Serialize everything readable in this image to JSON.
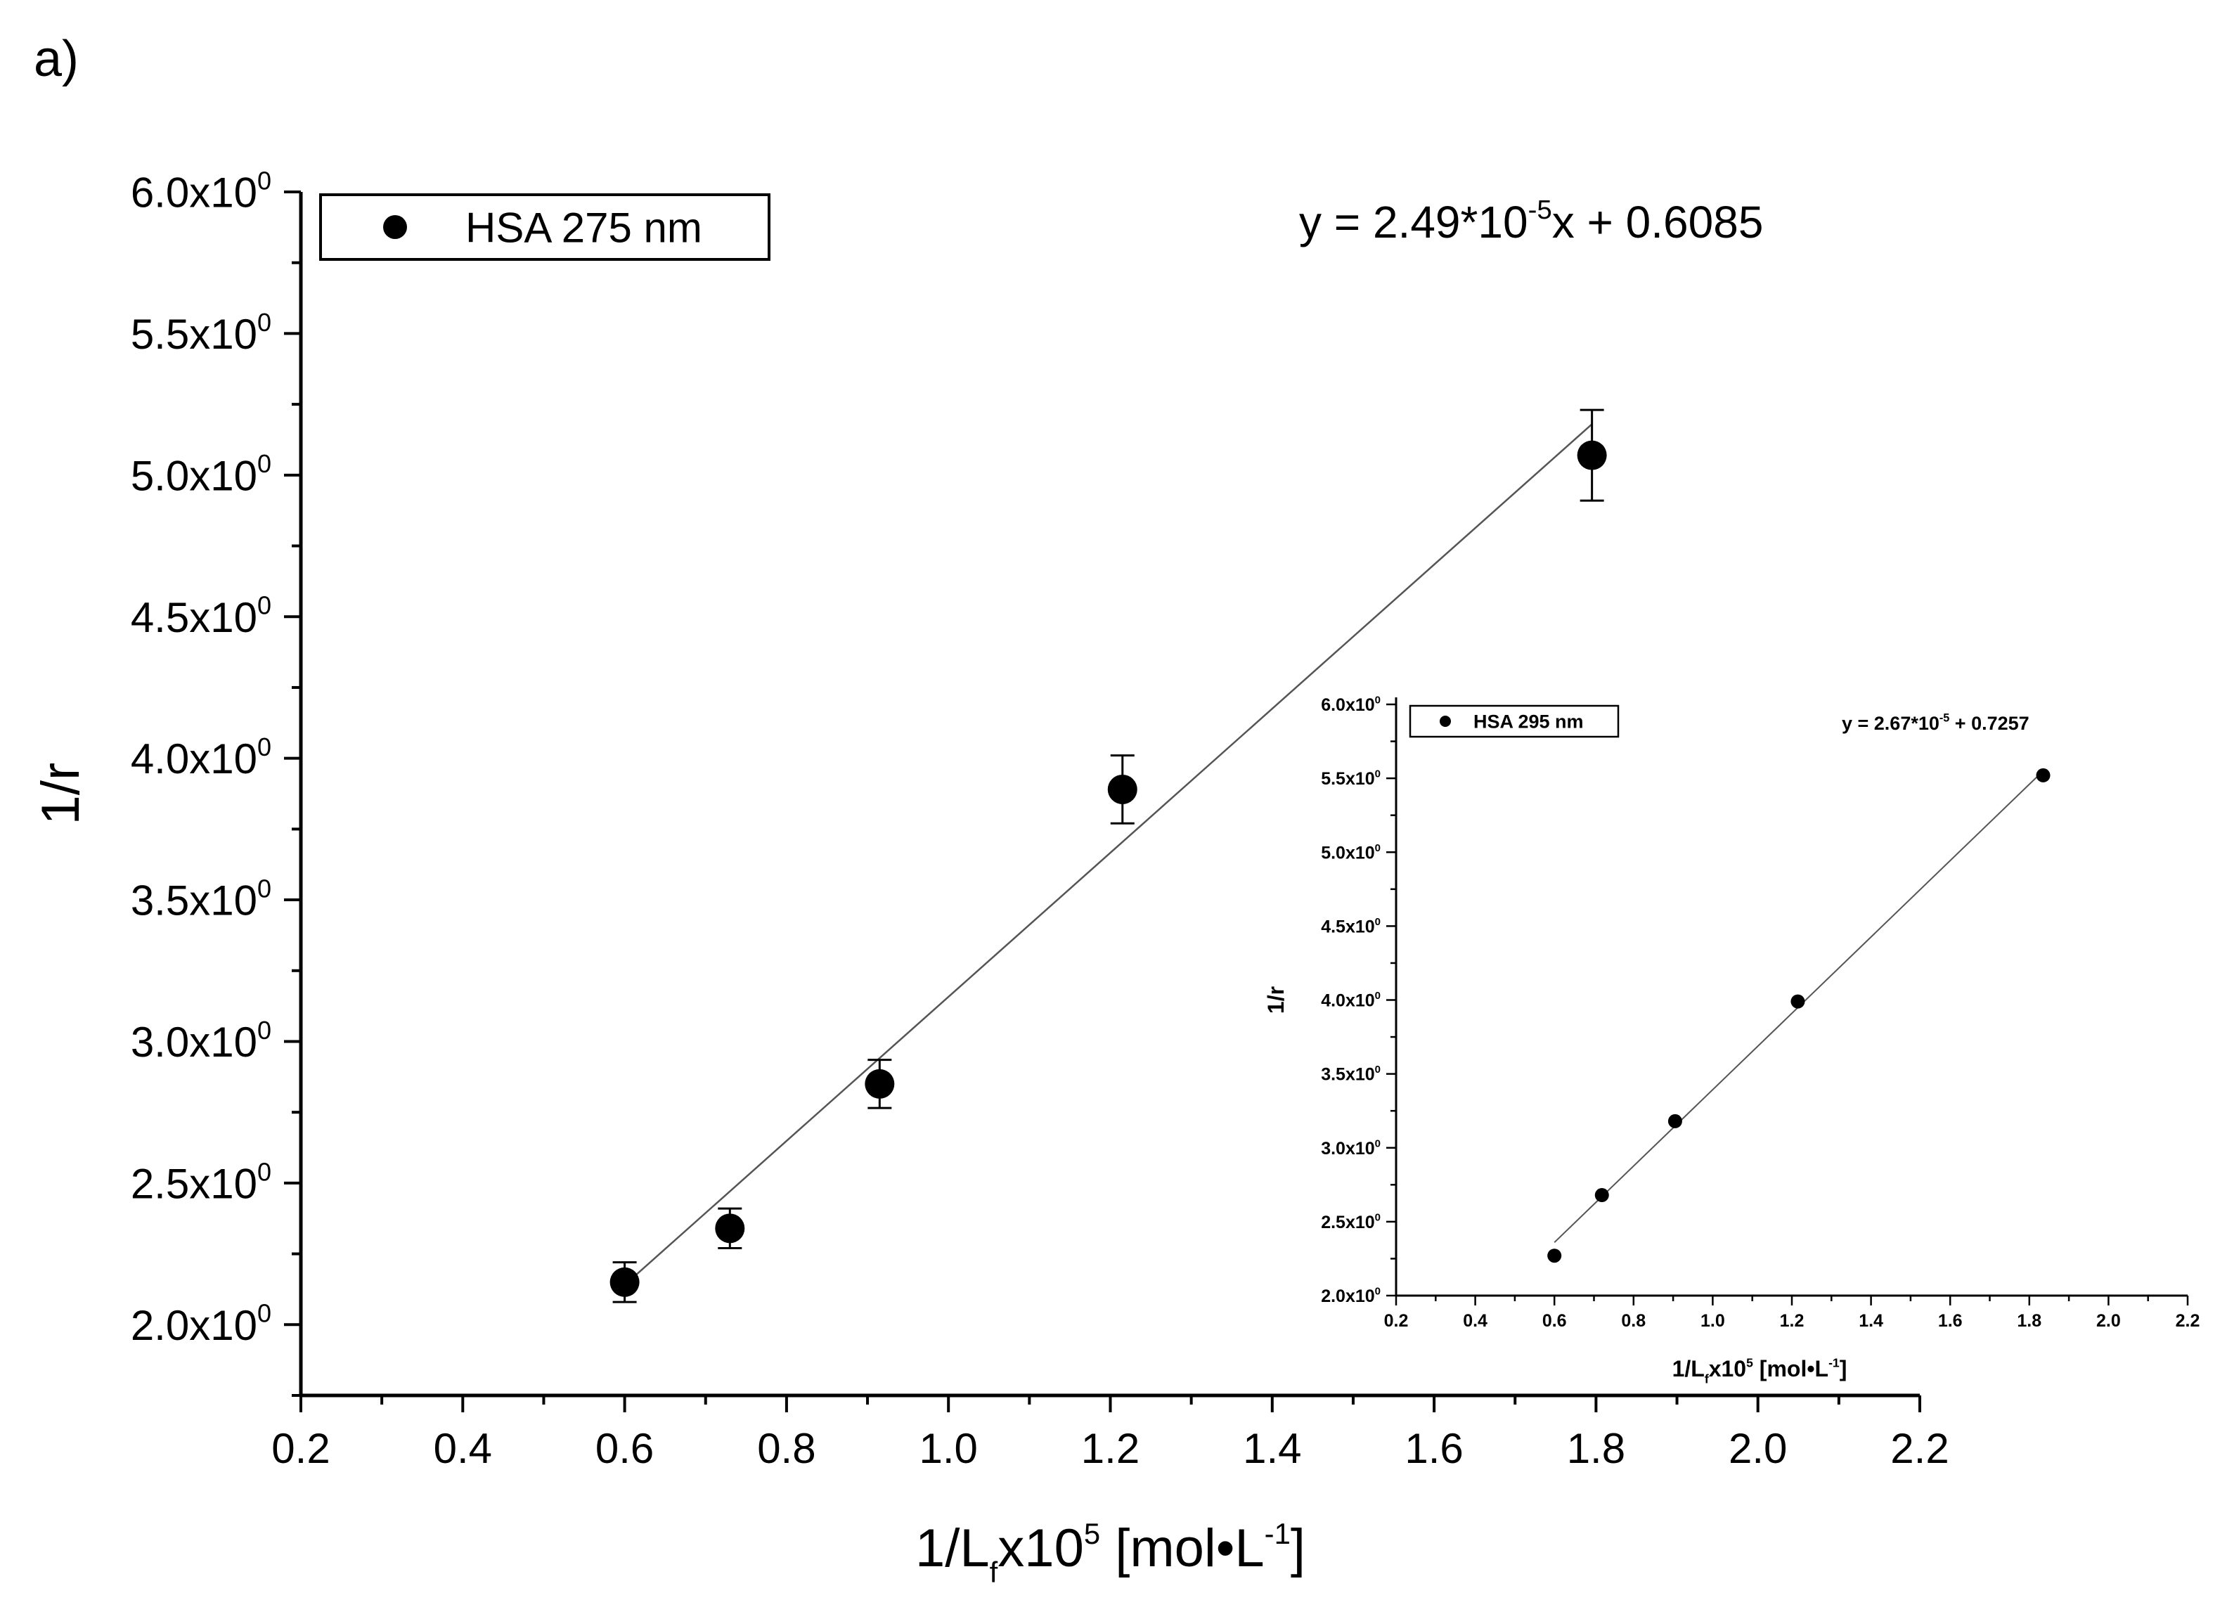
{
  "panel_label": "a)",
  "chart_data": [
    {
      "type": "scatter",
      "title": "",
      "xlabel": {
        "base": "1/L",
        "sub": "f",
        "mid": "x10",
        "sup": "5",
        "unit_pre": " [mol•L",
        "unit_sup": "-1",
        "unit_post": "]"
      },
      "ylabel": "1/r",
      "xlim": [
        0.2,
        2.2
      ],
      "ylim": [
        1.75,
        6.0
      ],
      "x_ticks": [
        0.2,
        0.4,
        0.6,
        0.8,
        1.0,
        1.2,
        1.4,
        1.6,
        1.8,
        2.0,
        2.2
      ],
      "x_tick_labels": [
        "0.2",
        "0.4",
        "0.6",
        "0.8",
        "1.0",
        "1.2",
        "1.4",
        "1.6",
        "1.8",
        "2.0",
        "2.2"
      ],
      "y_ticks": [
        2.0,
        2.5,
        3.0,
        3.5,
        4.0,
        4.5,
        5.0,
        5.5,
        6.0
      ],
      "y_tick_labels": [
        "2.0x10",
        "2.5x10",
        "3.0x10",
        "3.5x10",
        "4.0x10",
        "4.5x10",
        "5.0x10",
        "5.5x10",
        "6.0x10"
      ],
      "y_tick_exponent": "0",
      "legend": {
        "label": "HSA 275 nm",
        "position": "top-left"
      },
      "equation": {
        "pre": "y = 2.49*10",
        "sup": "-5",
        "post": "x + 0.6085"
      },
      "series": [
        {
          "name": "HSA 275 nm",
          "x": [
            0.6,
            0.73,
            0.915,
            1.215,
            1.795
          ],
          "y": [
            2.15,
            2.34,
            2.85,
            3.89,
            5.07
          ],
          "yerr": [
            0.07,
            0.07,
            0.085,
            0.12,
            0.16
          ]
        }
      ],
      "fit_line": {
        "x": [
          0.6,
          1.795
        ],
        "y": [
          2.14,
          5.18
        ]
      }
    },
    {
      "type": "scatter",
      "title": "",
      "xlabel": {
        "base": "1/L",
        "sub": "f",
        "mid": "x10",
        "sup": "5",
        "unit_pre": " [mol•L",
        "unit_sup": "-1",
        "unit_post": "]"
      },
      "ylabel": "1/r",
      "xlim": [
        0.2,
        2.2
      ],
      "ylim": [
        2.0,
        6.0
      ],
      "x_ticks": [
        0.2,
        0.4,
        0.6,
        0.8,
        1.0,
        1.2,
        1.4,
        1.6,
        1.8,
        2.0,
        2.2
      ],
      "x_tick_labels": [
        "0.2",
        "0.4",
        "0.6",
        "0.8",
        "1.0",
        "1.2",
        "1.4",
        "1.6",
        "1.8",
        "2.0",
        "2.2"
      ],
      "y_ticks": [
        2.0,
        2.5,
        3.0,
        3.5,
        4.0,
        4.5,
        5.0,
        5.5,
        6.0
      ],
      "y_tick_labels": [
        "2.0x10",
        "2.5x10",
        "3.0x10",
        "3.5x10",
        "4.0x10",
        "4.5x10",
        "5.0x10",
        "5.5x10",
        "6.0x10"
      ],
      "y_tick_exponent": "0",
      "legend": {
        "label": "HSA 295 nm",
        "position": "top-left"
      },
      "equation": {
        "pre": "y = 2.67*10",
        "sup": "-5",
        "post": " + 0.7257"
      },
      "series": [
        {
          "name": "HSA 295 nm",
          "x": [
            0.6,
            0.72,
            0.905,
            1.215,
            1.835
          ],
          "y": [
            2.27,
            2.68,
            3.18,
            3.99,
            5.52
          ]
        }
      ],
      "fit_line": {
        "x": [
          0.6,
          1.835
        ],
        "y": [
          2.36,
          5.55
        ]
      }
    }
  ]
}
